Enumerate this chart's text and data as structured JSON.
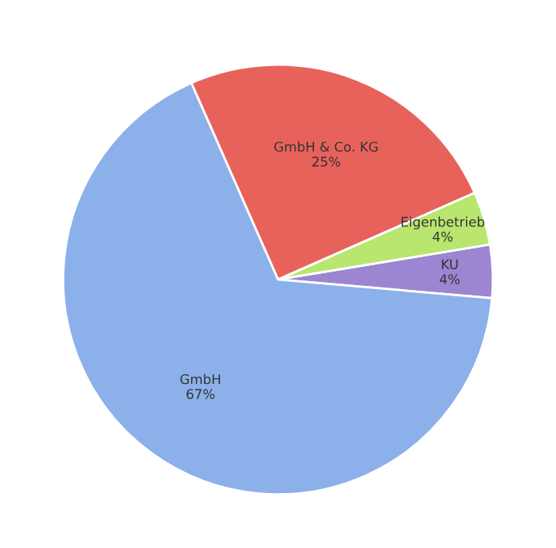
{
  "chart_data": {
    "type": "pie",
    "categories": [
      "KU",
      "Eigenbetrieb",
      "GmbH & Co. KG",
      "GmbH"
    ],
    "values": [
      4,
      4,
      25,
      67
    ],
    "value_labels": [
      "4%",
      "4%",
      "25%",
      "67%"
    ],
    "colors": [
      "#9c86d2",
      "#b8e66e",
      "#e8625c",
      "#8cb0ea"
    ]
  }
}
